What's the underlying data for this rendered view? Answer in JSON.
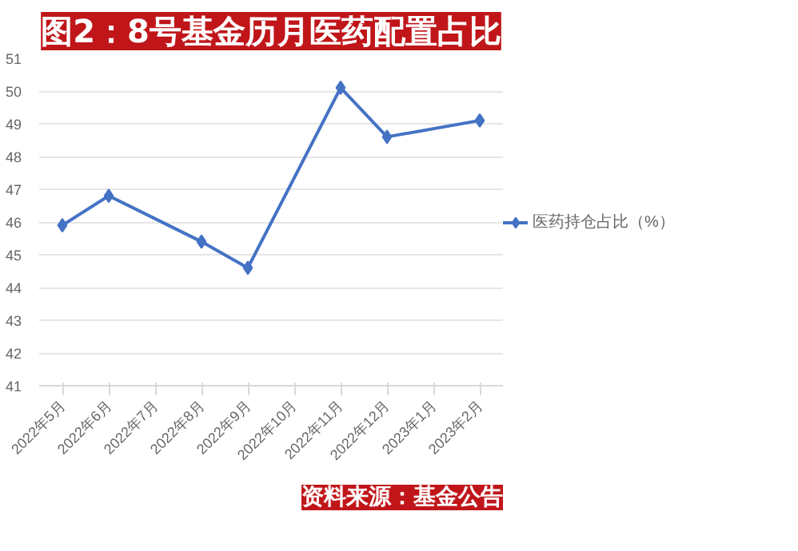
{
  "chart_data": {
    "type": "line",
    "title": "图2：8号基金历月医药配置占比",
    "categories": [
      "2022年5月",
      "2022年6月",
      "2022年7月",
      "2022年8月",
      "2022年9月",
      "2022年10月",
      "2022年11月",
      "2022年12月",
      "2023年1月",
      "2023年2月"
    ],
    "series": [
      {
        "name": "医药持仓占比（%）",
        "color": "#4472c4",
        "values": [
          45.9,
          46.8,
          null,
          45.4,
          44.6,
          null,
          50.1,
          48.6,
          null,
          49.1
        ]
      }
    ],
    "ylim": [
      41,
      51
    ],
    "yticks": [
      41,
      42,
      43,
      44,
      45,
      46,
      47,
      48,
      49,
      50,
      51
    ],
    "grid": "y",
    "legend": "right",
    "marker": "diamond",
    "line_style": "solid",
    "annotations": [
      "资料来源：基金公告"
    ]
  }
}
